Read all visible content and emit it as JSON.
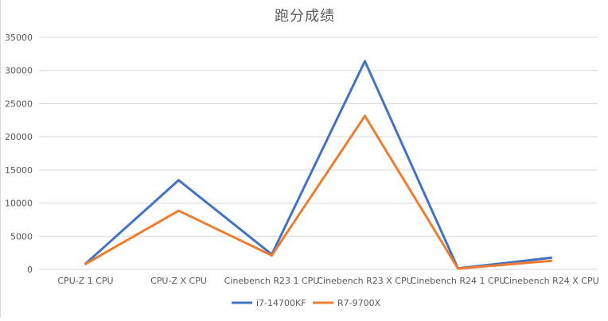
{
  "chart_data": {
    "type": "line",
    "title": "跑分成绩",
    "categories": [
      "CPU-Z 1 CPU",
      "CPU-Z X CPU",
      "Cinebench R23 1 CPU",
      "Cinebench R23 X CPU",
      "Cinebench R24 1 CPU",
      "Cinebench R24 X CPU"
    ],
    "series": [
      {
        "name": "i7-14700KF",
        "color": "#4472c4",
        "values": [
          850,
          13450,
          2250,
          31400,
          140,
          1750
        ]
      },
      {
        "name": "R7-9700X",
        "color": "#ed7d31",
        "values": [
          820,
          8850,
          2100,
          23150,
          110,
          1300
        ]
      }
    ],
    "ylim": [
      0,
      35000
    ],
    "yticks": [
      0,
      5000,
      10000,
      15000,
      20000,
      25000,
      30000,
      35000
    ],
    "grid": true,
    "legend": "bottom"
  }
}
